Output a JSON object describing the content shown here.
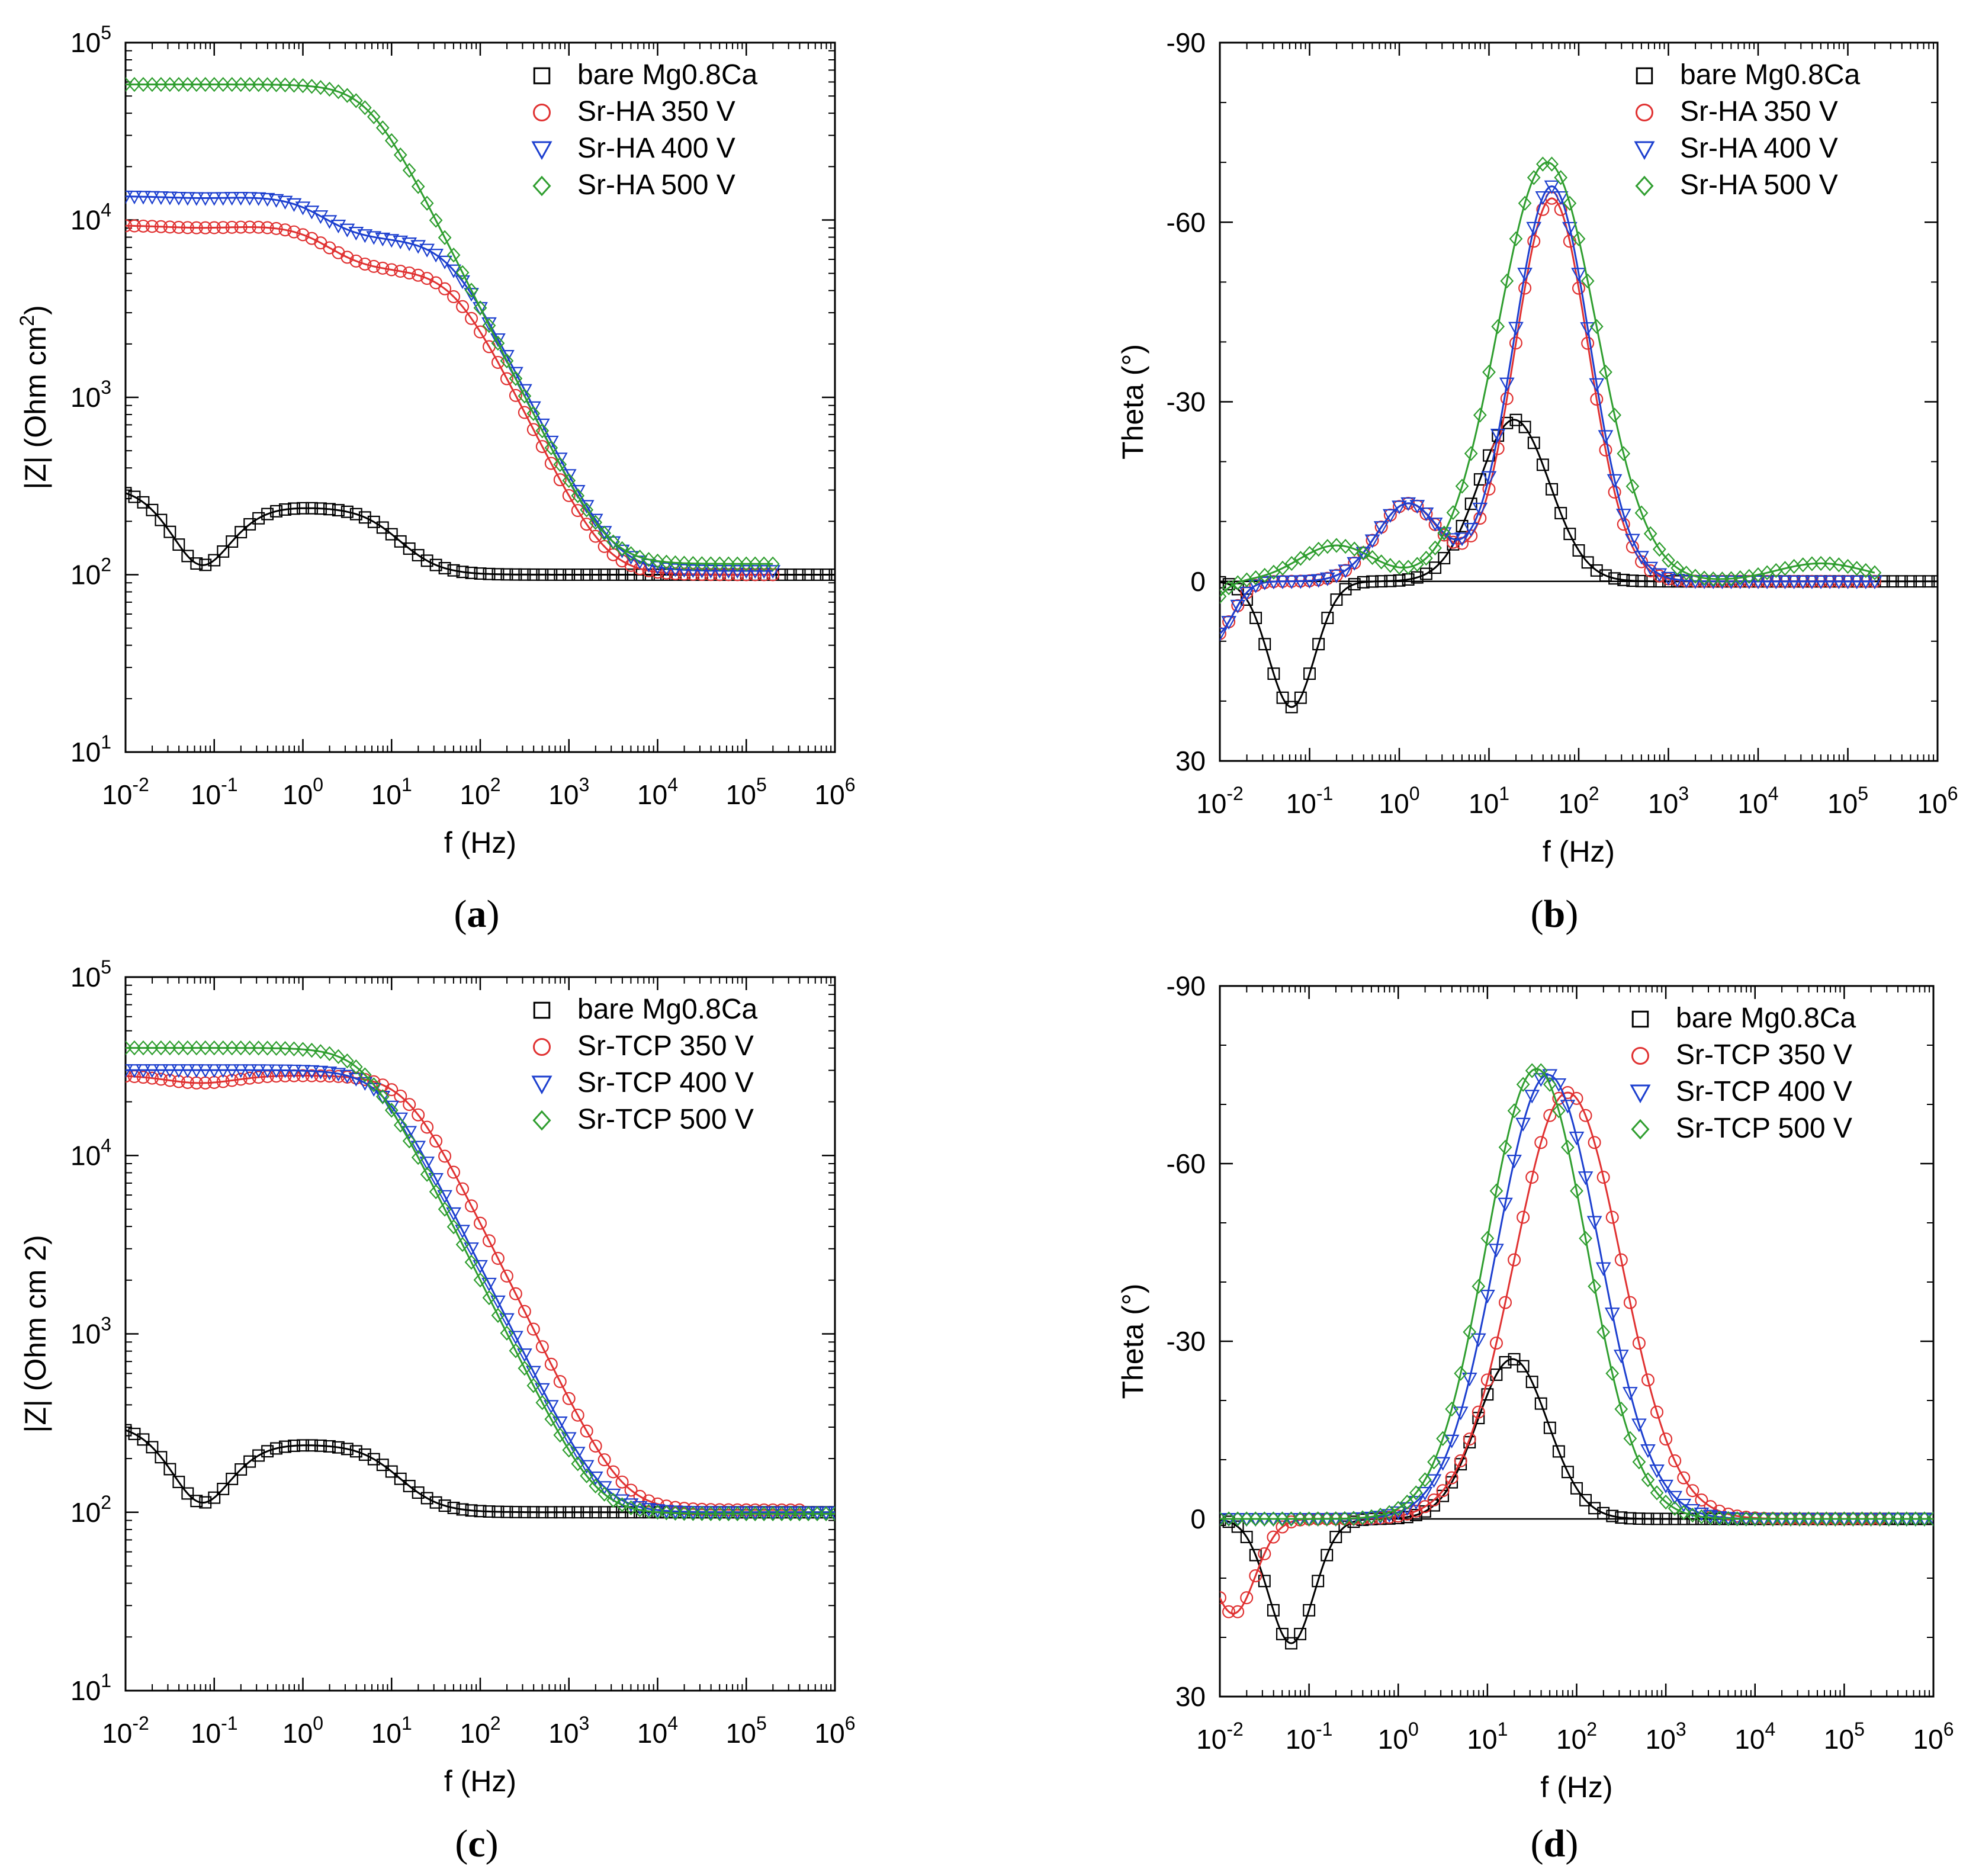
{
  "chart_data": [
    {
      "id": "a",
      "type": "scatter",
      "caption": "(a)",
      "xlabel": "f (Hz)",
      "ylabel": "|Z| (Ohm cm²)",
      "xscale": "log",
      "yscale": "log",
      "xlim_exp": [
        -2,
        6
      ],
      "ylim_exp": [
        1,
        5
      ],
      "xticks": [
        "10-2",
        "10-1",
        "100",
        "101",
        "102",
        "103",
        "104",
        "105",
        "106"
      ],
      "yticks": [
        "101",
        "102",
        "103",
        "104",
        "105"
      ],
      "legend_position": "top-right",
      "legend": [
        "bare Mg0.8Ca",
        "Sr-HA 350 V",
        "Sr-HA 400 V",
        "Sr-HA 500 V"
      ],
      "series": [
        {
          "name": "bare Mg0.8Ca",
          "color": "#000000",
          "marker": "square",
          "x_max": 1000000,
          "curve": {
            "kind": "z",
            "Rs": 100,
            "ds": [
              [
                70,
                0.03
              ],
              [
                140,
                8
              ]
            ],
            "lf": 1
          }
        },
        {
          "name": "Sr-HA 350 V",
          "color": "#e03131",
          "marker": "circle",
          "x_max": 200000,
          "curve": {
            "kind": "z",
            "Rs": 100,
            "ds": [
              [
                5000,
                50
              ],
              [
                4200,
                1.5
              ]
            ],
            "lf": 0.05
          }
        },
        {
          "name": "Sr-HA 400 V",
          "color": "#1c3fcf",
          "marker": "triangle",
          "x_max": 200000,
          "curve": {
            "kind": "z",
            "Rs": 105,
            "ds": [
              [
                7500,
                45
              ],
              [
                6000,
                1.3
              ]
            ],
            "lf": 0.04
          }
        },
        {
          "name": "Sr-HA 500 V",
          "color": "#2f9e2f",
          "marker": "diamond",
          "x_max": 200000,
          "curve": {
            "kind": "z",
            "Rs": 115,
            "ds": [
              [
                58000,
                5.5
              ]
            ],
            "lf": 0
          }
        }
      ]
    },
    {
      "id": "b",
      "type": "scatter",
      "caption": "(b)",
      "xlabel": "f (Hz)",
      "ylabel": "Theta (°)",
      "xscale": "log",
      "xlim_exp": [
        -2,
        6
      ],
      "ylim": [
        30,
        -90
      ],
      "xticks": [
        "10-2",
        "10-1",
        "100",
        "101",
        "102",
        "103",
        "104",
        "105",
        "106"
      ],
      "yticks": [
        "-90",
        "-60",
        "-30",
        "0",
        "30"
      ],
      "legend_position": "top-right",
      "legend": [
        "bare Mg0.8Ca",
        "Sr-HA 350 V",
        "Sr-HA 400 V",
        "Sr-HA 500 V"
      ],
      "series": [
        {
          "name": "bare Mg0.8Ca",
          "color": "#000000",
          "marker": "square",
          "x_max": 1000000,
          "curve": {
            "kind": "theta",
            "peaks": [
              [
                -27,
                1.28,
                0.56
              ],
              [
                21,
                -1.2,
                0.36
              ]
            ]
          }
        },
        {
          "name": "Sr-HA 350 V",
          "color": "#e03131",
          "marker": "circle",
          "x_max": 200000,
          "curve": {
            "kind": "theta",
            "peaks": [
              [
                -64,
                1.7,
                0.58
              ],
              [
                -13,
                0.1,
                0.5
              ],
              [
                9,
                -2.05,
                0.28
              ]
            ]
          }
        },
        {
          "name": "Sr-HA 400 V",
          "color": "#1c3fcf",
          "marker": "triangle",
          "x_max": 200000,
          "curve": {
            "kind": "theta",
            "peaks": [
              [
                -66,
                1.7,
                0.6
              ],
              [
                -13,
                0.1,
                0.5
              ],
              [
                9,
                -2.05,
                0.28
              ]
            ]
          }
        },
        {
          "name": "Sr-HA 500 V",
          "color": "#2f9e2f",
          "marker": "diamond",
          "x_max": 200000,
          "curve": {
            "kind": "theta",
            "peaks": [
              [
                -70,
                1.65,
                0.78
              ],
              [
                -6,
                -0.7,
                0.6
              ],
              [
                7,
                -2.3,
                0.3
              ],
              [
                -3,
                4.7,
                0.7
              ]
            ]
          }
        }
      ]
    },
    {
      "id": "c",
      "type": "scatter",
      "caption": "(c)",
      "xlabel": "f (Hz)",
      "ylabel": "|Z| (Ohm cm 2)",
      "xscale": "log",
      "yscale": "log",
      "xlim_exp": [
        -2,
        6
      ],
      "ylim_exp": [
        1,
        5
      ],
      "xticks": [
        "10-2",
        "10-1",
        "100",
        "101",
        "102",
        "103",
        "104",
        "105",
        "106"
      ],
      "yticks": [
        "101",
        "102",
        "103",
        "104",
        "105"
      ],
      "legend_position": "top-right",
      "legend": [
        "bare Mg0.8Ca",
        "Sr-TCP 350 V",
        "Sr-TCP 400 V",
        "Sr-TCP 500 V"
      ],
      "series": [
        {
          "name": "bare Mg0.8Ca",
          "color": "#000000",
          "marker": "square",
          "x_max": 1000000,
          "curve": {
            "kind": "z",
            "Rs": 100,
            "ds": [
              [
                70,
                0.03
              ],
              [
                140,
                8
              ]
            ],
            "lf": 1
          }
        },
        {
          "name": "Sr-TCP 350 V",
          "color": "#e03131",
          "marker": "circle",
          "x_max": 500000,
          "curve": {
            "kind": "z",
            "Rs": 103,
            "ds": [
              [
                28000,
                15
              ]
            ],
            "lf": 0.17
          }
        },
        {
          "name": "Sr-TCP 400 V",
          "color": "#1c3fcf",
          "marker": "triangle",
          "x_max": 1000000,
          "curve": {
            "kind": "z",
            "Rs": 100,
            "ds": [
              [
                30000,
                8
              ]
            ],
            "lf": 0
          }
        },
        {
          "name": "Sr-TCP 500 V",
          "color": "#2f9e2f",
          "marker": "diamond",
          "x_max": 1000000,
          "curve": {
            "kind": "z",
            "Rs": 98,
            "ds": [
              [
                40000,
                5
              ]
            ],
            "lf": 0
          }
        }
      ]
    },
    {
      "id": "d",
      "type": "scatter",
      "caption": "(d)",
      "xlabel": "f (Hz)",
      "ylabel": "Theta (°)",
      "xscale": "log",
      "xlim_exp": [
        -2,
        6
      ],
      "ylim": [
        30,
        -90
      ],
      "xticks": [
        "10-2",
        "10-1",
        "100",
        "101",
        "102",
        "103",
        "104",
        "105",
        "106"
      ],
      "yticks": [
        "-90",
        "-60",
        "-30",
        "0",
        "30"
      ],
      "legend_position": "top-right",
      "legend": [
        "bare Mg0.8Ca",
        "Sr-TCP 350 V",
        "Sr-TCP 400 V",
        "Sr-TCP 500 V"
      ],
      "series": [
        {
          "name": "bare Mg0.8Ca",
          "color": "#000000",
          "marker": "square",
          "x_max": 1000000,
          "curve": {
            "kind": "theta",
            "peaks": [
              [
                -27,
                1.28,
                0.56
              ],
              [
                21,
                -1.2,
                0.36
              ]
            ]
          }
        },
        {
          "name": "Sr-TCP 350 V",
          "color": "#e03131",
          "marker": "circle",
          "x_max": 300000,
          "curve": {
            "kind": "theta",
            "peaks": [
              [
                -72,
                1.9,
                0.85
              ],
              [
                16,
                -1.85,
                0.35
              ]
            ]
          }
        },
        {
          "name": "Sr-TCP 400 V",
          "color": "#1c3fcf",
          "marker": "triangle",
          "x_max": 1000000,
          "curve": {
            "kind": "theta",
            "peaks": [
              [
                -75,
                1.68,
                0.82
              ]
            ]
          }
        },
        {
          "name": "Sr-TCP 500 V",
          "color": "#2f9e2f",
          "marker": "diamond",
          "x_max": 1000000,
          "curve": {
            "kind": "theta",
            "peaks": [
              [
                -76,
                1.55,
                0.8
              ]
            ]
          }
        }
      ]
    }
  ]
}
